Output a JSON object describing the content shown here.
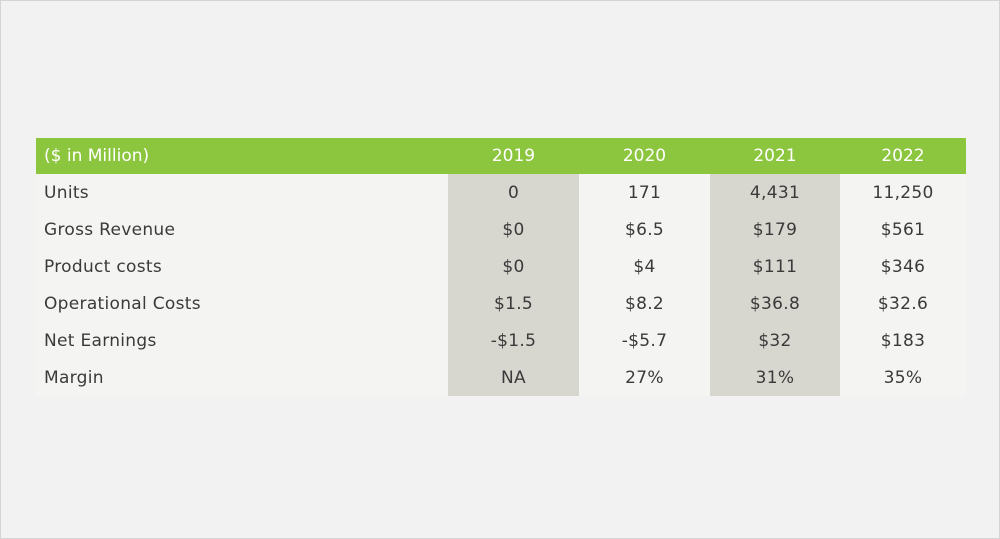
{
  "table": {
    "header": {
      "label": "($ in Million)",
      "years": [
        "2019",
        "2020",
        "2021",
        "2022"
      ]
    },
    "rows": [
      {
        "label": "Units",
        "values": [
          "0",
          "171",
          "4,431",
          "11,250"
        ]
      },
      {
        "label": "Gross Revenue",
        "values": [
          "$0",
          "$6.5",
          "$179",
          "$561"
        ]
      },
      {
        "label": "Product costs",
        "values": [
          "$0",
          "$4",
          "$111",
          "$346"
        ]
      },
      {
        "label": "Operational Costs",
        "values": [
          "$1.5",
          "$8.2",
          "$36.8",
          "$32.6"
        ]
      },
      {
        "label": "Net Earnings",
        "values": [
          "-$1.5",
          "-$5.7",
          "$32",
          "$183"
        ]
      },
      {
        "label": "Margin",
        "values": [
          "NA",
          "27%",
          "31%",
          "35%"
        ]
      }
    ]
  },
  "colors": {
    "header_green": "#8cc63f",
    "shaded_column": "#d7d6cf",
    "background": "#f2f2f2"
  }
}
